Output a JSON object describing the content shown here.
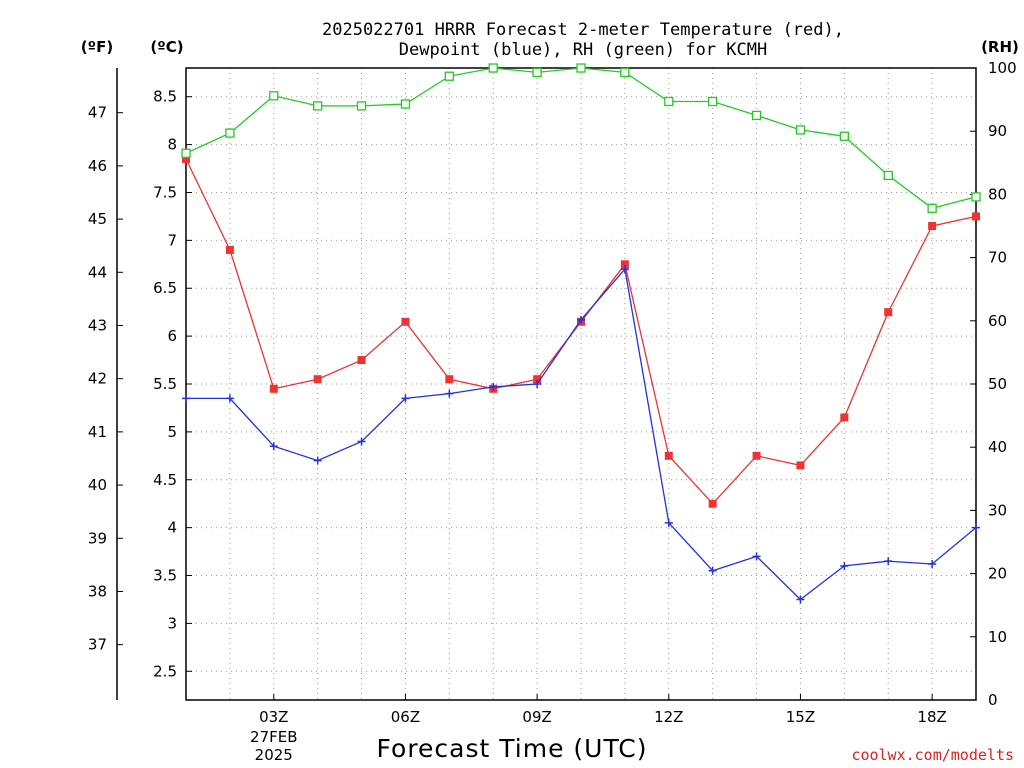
{
  "title_lines": [
    "2025022701 HRRR Forecast 2-meter Temperature (red),",
    "Dewpoint (blue), RH (green) for KCMH"
  ],
  "unit_labels": {
    "fahrenheit": "(ºF)",
    "celsius": "(ºC)",
    "rh": "(RH)"
  },
  "xlabel": "Forecast Time (UTC)",
  "credit": "coolwx.com/modelts",
  "colors": {
    "temperature": "#ee3333",
    "dewpoint": "#2233dd",
    "rh": "#22cc22",
    "credit": "#dd2222"
  },
  "chart_data": {
    "type": "line",
    "x_hours": [
      1,
      2,
      3,
      4,
      5,
      6,
      7,
      8,
      9,
      10,
      11,
      12,
      13,
      14,
      15,
      16,
      17,
      18,
      19
    ],
    "xlim": [
      1,
      19
    ],
    "x_ticks": [
      {
        "hour": 3,
        "label": "03Z",
        "sub": [
          "27FEB",
          "2025"
        ]
      },
      {
        "hour": 6,
        "label": "06Z",
        "sub": []
      },
      {
        "hour": 9,
        "label": "09Z",
        "sub": []
      },
      {
        "hour": 12,
        "label": "12Z",
        "sub": []
      },
      {
        "hour": 15,
        "label": "15Z",
        "sub": []
      },
      {
        "hour": 18,
        "label": "18Z",
        "sub": []
      }
    ],
    "celsius_axis": {
      "range": [
        2.2,
        8.8
      ],
      "ticks": [
        "2.5",
        "3",
        "3.5",
        "4",
        "4.5",
        "5",
        "5.5",
        "6",
        "6.5",
        "7",
        "7.5",
        "8",
        "8.5"
      ]
    },
    "fahrenheit_axis": {
      "ticks": [
        "37",
        "38",
        "39",
        "40",
        "41",
        "42",
        "43",
        "44",
        "45",
        "46",
        "47"
      ]
    },
    "rh_axis": {
      "range": [
        0,
        100
      ],
      "ticks": [
        "0",
        "10",
        "20",
        "30",
        "40",
        "50",
        "60",
        "70",
        "80",
        "90",
        "100"
      ]
    },
    "grid": true,
    "series": [
      {
        "key": "temperature",
        "name": "2-meter Temperature",
        "axis": "celsius",
        "marker": "filled-square",
        "values": [
          7.85,
          6.9,
          5.45,
          5.55,
          5.75,
          6.15,
          5.55,
          5.45,
          5.55,
          6.15,
          6.75,
          4.75,
          4.25,
          4.75,
          4.65,
          5.15,
          6.25,
          7.15,
          7.25
        ]
      },
      {
        "key": "dewpoint",
        "name": "Dewpoint",
        "axis": "celsius",
        "marker": "plus",
        "values": [
          5.35,
          5.35,
          4.85,
          4.7,
          4.9,
          5.35,
          5.4,
          5.47,
          5.5,
          6.17,
          6.7,
          4.05,
          3.55,
          3.7,
          3.25,
          3.6,
          3.65,
          3.62,
          4.0
        ]
      },
      {
        "key": "rh",
        "name": "RH",
        "axis": "rh",
        "marker": "open-square",
        "values": [
          86.5,
          89.7,
          95.6,
          94.0,
          94.0,
          94.3,
          98.7,
          100,
          99.3,
          100,
          99.3,
          94.7,
          94.7,
          92.5,
          90.2,
          89.2,
          83.0,
          77.8,
          79.6
        ]
      }
    ]
  }
}
